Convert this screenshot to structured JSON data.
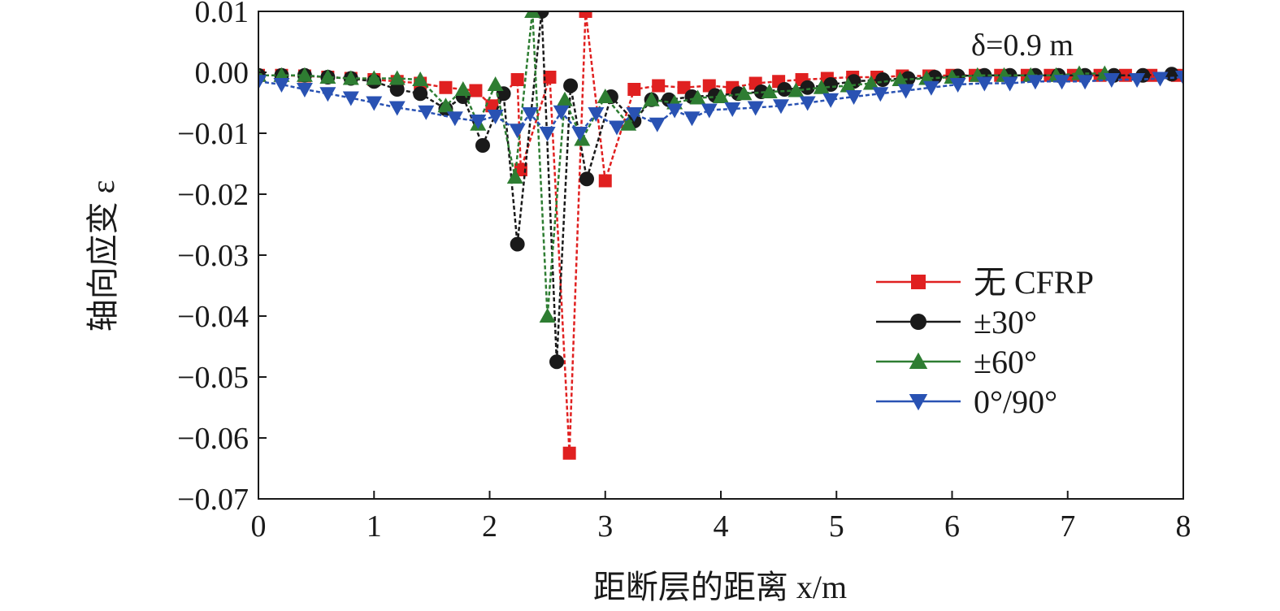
{
  "chart_data": {
    "type": "line",
    "title": "",
    "xlabel": "距断层的距离 x/m",
    "ylabel": "轴向应变 ε",
    "xlim": [
      0,
      8
    ],
    "ylim": [
      -0.07,
      0.01
    ],
    "x_ticks": [
      "0",
      "1",
      "2",
      "3",
      "4",
      "5",
      "6",
      "7",
      "8"
    ],
    "y_ticks": [
      "0.01",
      "0.00",
      "−0.01",
      "−0.02",
      "−0.03",
      "−0.04",
      "−0.05",
      "−0.06",
      "−0.07"
    ],
    "annotation": "δ=0.9 m",
    "grid": false,
    "legend_position": "right",
    "series": [
      {
        "name": "无 CFRP",
        "color": "#e02020",
        "marker": "square",
        "points": [
          [
            0,
            -0.0005
          ],
          [
            0.2,
            -0.0005
          ],
          [
            0.4,
            -0.0006
          ],
          [
            0.6,
            -0.0008
          ],
          [
            0.8,
            -0.001
          ],
          [
            1.0,
            -0.0012
          ],
          [
            1.2,
            -0.0015
          ],
          [
            1.4,
            -0.0018
          ],
          [
            1.62,
            -0.0025
          ],
          [
            1.88,
            -0.003
          ],
          [
            2.02,
            -0.0055
          ],
          [
            2.24,
            -0.0012
          ],
          [
            2.27,
            -0.016
          ],
          [
            2.52,
            -0.0008
          ],
          [
            2.69,
            -0.0625
          ],
          [
            2.83,
            0.01
          ],
          [
            3.0,
            -0.0178
          ],
          [
            3.25,
            -0.0028
          ],
          [
            3.46,
            -0.0022
          ],
          [
            3.68,
            -0.0025
          ],
          [
            3.9,
            -0.0022
          ],
          [
            4.1,
            -0.0025
          ],
          [
            4.3,
            -0.0018
          ],
          [
            4.5,
            -0.0015
          ],
          [
            4.7,
            -0.0012
          ],
          [
            4.92,
            -0.001
          ],
          [
            5.14,
            -0.0008
          ],
          [
            5.35,
            -0.0008
          ],
          [
            5.57,
            -0.0006
          ],
          [
            5.8,
            -0.0006
          ],
          [
            6.0,
            -0.0005
          ],
          [
            6.2,
            -0.0005
          ],
          [
            6.42,
            -0.0005
          ],
          [
            6.65,
            -0.0005
          ],
          [
            6.85,
            -0.0005
          ],
          [
            7.05,
            -0.0005
          ],
          [
            7.28,
            -0.0005
          ],
          [
            7.5,
            -0.0005
          ],
          [
            7.72,
            -0.0005
          ],
          [
            7.95,
            -0.0005
          ]
        ]
      },
      {
        "name": "±30°",
        "color": "#1a1a1a",
        "marker": "circle",
        "points": [
          [
            0,
            -0.0005
          ],
          [
            0.2,
            -0.0005
          ],
          [
            0.4,
            -0.0005
          ],
          [
            0.6,
            -0.0008
          ],
          [
            0.8,
            -0.001
          ],
          [
            1.0,
            -0.0015
          ],
          [
            1.2,
            -0.0028
          ],
          [
            1.4,
            -0.0035
          ],
          [
            1.62,
            -0.006
          ],
          [
            1.77,
            -0.004
          ],
          [
            1.94,
            -0.012
          ],
          [
            2.12,
            -0.0035
          ],
          [
            2.24,
            -0.0282
          ],
          [
            2.45,
            0.01
          ],
          [
            2.58,
            -0.0475
          ],
          [
            2.7,
            -0.0022
          ],
          [
            2.84,
            -0.0175
          ],
          [
            3.05,
            -0.004
          ],
          [
            3.25,
            -0.008
          ],
          [
            3.4,
            -0.0045
          ],
          [
            3.55,
            -0.0045
          ],
          [
            3.75,
            -0.004
          ],
          [
            3.95,
            -0.0038
          ],
          [
            4.15,
            -0.0035
          ],
          [
            4.35,
            -0.0032
          ],
          [
            4.55,
            -0.0028
          ],
          [
            4.75,
            -0.0025
          ],
          [
            4.95,
            -0.002
          ],
          [
            5.15,
            -0.0015
          ],
          [
            5.4,
            -0.0012
          ],
          [
            5.62,
            -0.001
          ],
          [
            5.85,
            -0.0008
          ],
          [
            6.05,
            -0.0006
          ],
          [
            6.28,
            -0.0005
          ],
          [
            6.5,
            -0.0005
          ],
          [
            6.72,
            -0.0005
          ],
          [
            6.92,
            -0.0005
          ],
          [
            7.15,
            -0.0005
          ],
          [
            7.4,
            -0.0005
          ],
          [
            7.65,
            -0.0005
          ],
          [
            7.9,
            -0.0003
          ]
        ]
      },
      {
        "name": "±60°",
        "color": "#2e7d32",
        "marker": "triangle-up",
        "points": [
          [
            0,
            -0.0005
          ],
          [
            0.2,
            -0.0005
          ],
          [
            0.4,
            -0.0005
          ],
          [
            0.6,
            -0.0008
          ],
          [
            0.8,
            -0.001
          ],
          [
            1.0,
            -0.001
          ],
          [
            1.2,
            -0.001
          ],
          [
            1.4,
            -0.0012
          ],
          [
            1.62,
            -0.0055
          ],
          [
            1.77,
            -0.0028
          ],
          [
            1.9,
            -0.0085
          ],
          [
            2.05,
            -0.002
          ],
          [
            2.22,
            -0.0172
          ],
          [
            2.37,
            0.01
          ],
          [
            2.5,
            -0.04
          ],
          [
            2.65,
            -0.0045
          ],
          [
            2.8,
            -0.011
          ],
          [
            3.0,
            -0.004
          ],
          [
            3.2,
            -0.0085
          ],
          [
            3.4,
            -0.0045
          ],
          [
            3.6,
            -0.005
          ],
          [
            3.8,
            -0.0042
          ],
          [
            4.0,
            -0.004
          ],
          [
            4.2,
            -0.0035
          ],
          [
            4.42,
            -0.0032
          ],
          [
            4.65,
            -0.003
          ],
          [
            4.87,
            -0.0025
          ],
          [
            5.1,
            -0.0022
          ],
          [
            5.3,
            -0.0018
          ],
          [
            5.55,
            -0.0012
          ],
          [
            5.78,
            -0.001
          ],
          [
            6.0,
            -0.0008
          ],
          [
            6.22,
            -0.0005
          ],
          [
            6.45,
            -0.0005
          ],
          [
            6.68,
            -0.0005
          ],
          [
            6.9,
            -0.0005
          ],
          [
            7.1,
            -0.0002
          ],
          [
            7.32,
            -0.0002
          ]
        ]
      },
      {
        "name": "0°/90°",
        "color": "#2952b3",
        "marker": "triangle-down",
        "points": [
          [
            0,
            -0.0015
          ],
          [
            0.2,
            -0.002
          ],
          [
            0.4,
            -0.0028
          ],
          [
            0.6,
            -0.0035
          ],
          [
            0.8,
            -0.0042
          ],
          [
            1.0,
            -0.005
          ],
          [
            1.2,
            -0.0058
          ],
          [
            1.45,
            -0.0065
          ],
          [
            1.7,
            -0.0075
          ],
          [
            1.9,
            -0.008
          ],
          [
            2.05,
            -0.0072
          ],
          [
            2.24,
            -0.0095
          ],
          [
            2.35,
            -0.0068
          ],
          [
            2.5,
            -0.01
          ],
          [
            2.62,
            -0.0065
          ],
          [
            2.78,
            -0.01
          ],
          [
            2.92,
            -0.0068
          ],
          [
            3.1,
            -0.009
          ],
          [
            3.25,
            -0.0068
          ],
          [
            3.45,
            -0.0085
          ],
          [
            3.6,
            -0.0062
          ],
          [
            3.75,
            -0.0075
          ],
          [
            3.9,
            -0.0062
          ],
          [
            4.1,
            -0.006
          ],
          [
            4.3,
            -0.0058
          ],
          [
            4.52,
            -0.0055
          ],
          [
            4.75,
            -0.005
          ],
          [
            4.95,
            -0.0045
          ],
          [
            5.15,
            -0.004
          ],
          [
            5.38,
            -0.0035
          ],
          [
            5.6,
            -0.003
          ],
          [
            5.82,
            -0.0025
          ],
          [
            6.05,
            -0.002
          ],
          [
            6.28,
            -0.0018
          ],
          [
            6.5,
            -0.0018
          ],
          [
            6.72,
            -0.0015
          ],
          [
            6.95,
            -0.0015
          ],
          [
            7.15,
            -0.0015
          ],
          [
            7.38,
            -0.0012
          ],
          [
            7.6,
            -0.0012
          ],
          [
            7.8,
            -0.001
          ],
          [
            8.0,
            -0.0008
          ]
        ]
      }
    ]
  }
}
